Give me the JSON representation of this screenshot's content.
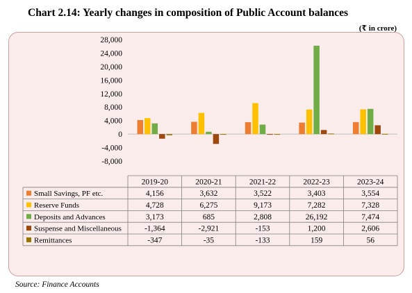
{
  "title": "Chart 2.14: Yearly changes in composition of Public Account balances",
  "unit_note": "(₹ in crore)",
  "source": "Source: Finance Accounts",
  "chart_data": {
    "type": "bar",
    "categories": [
      "2019-20",
      "2020-21",
      "2021-22",
      "2022-23",
      "2023-24"
    ],
    "ylim": [
      -8000,
      28000
    ],
    "yticks": [
      -8000,
      -4000,
      0,
      4000,
      8000,
      12000,
      16000,
      20000,
      24000,
      28000
    ],
    "ytick_labels": [
      "-8,000",
      "-4,000",
      "0",
      "4,000",
      "8,000",
      "12,000",
      "16,000",
      "20,000",
      "24,000",
      "28,000"
    ],
    "grid": false,
    "legend": "data-table",
    "series": [
      {
        "name": "Small Savings, PF etc.",
        "color": "#ed7d31",
        "values": [
          4156,
          3632,
          3522,
          3403,
          3554
        ],
        "labels": [
          "4,156",
          "3,632",
          "3,522",
          "3,403",
          "3,554"
        ]
      },
      {
        "name": "Reserve Funds",
        "color": "#ffc000",
        "values": [
          4728,
          6275,
          9173,
          7282,
          7328
        ],
        "labels": [
          "4,728",
          "6,275",
          "9,173",
          "7,282",
          "7,328"
        ]
      },
      {
        "name": "Deposits and Advances",
        "color": "#70ad47",
        "values": [
          3173,
          685,
          2808,
          26192,
          7474
        ],
        "labels": [
          "3,173",
          "685",
          "2,808",
          "26,192",
          "7,474"
        ]
      },
      {
        "name": "Suspense and Miscellaneous",
        "color": "#9e480e",
        "values": [
          -1364,
          -2921,
          -153,
          1200,
          2606
        ],
        "labels": [
          "-1,364",
          "-2,921",
          "-153",
          "1,200",
          "2,606"
        ]
      },
      {
        "name": "Remittances",
        "color": "#997300",
        "values": [
          -347,
          -35,
          -133,
          159,
          56
        ],
        "labels": [
          "-347",
          "-35",
          "-133",
          "159",
          "56"
        ]
      }
    ]
  }
}
